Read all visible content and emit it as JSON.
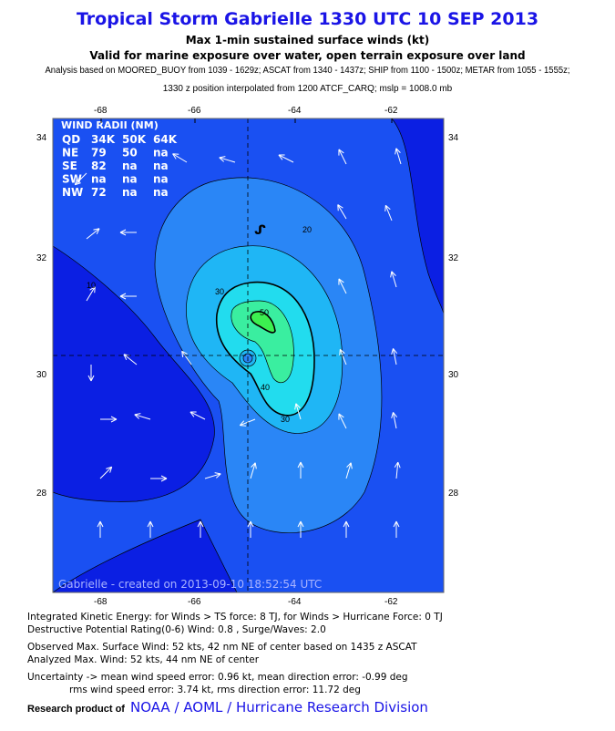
{
  "header": {
    "title": "Tropical Storm Gabrielle 1330 UTC 10 SEP 2013",
    "subtitle1": "Max 1-min sustained surface winds (kt)",
    "subtitle2": "Valid for marine exposure over water, open terrain exposure over land",
    "analysis1": "Analysis based on MOORED_BUOY from 1039 - 1629z; ASCAT from 1340 - 1437z; SHIP from 1100 - 1500z; METAR from 1055 - 1555z;",
    "analysis2": "1330 z position interpolated from 1200 ATCF_CARQ; mslp = 1008.0 mb"
  },
  "map": {
    "lon_ticks": [
      "-68",
      "-66",
      "-64",
      "-62"
    ],
    "lat_ticks": [
      "34",
      "32",
      "30",
      "28"
    ],
    "contour_labels": [
      "10",
      "20",
      "30",
      "40",
      "50"
    ],
    "watermark": "Gabrielle - created on 2013-09-10 18:52:54 UTC",
    "colors": {
      "lt10": "#0b1fe3",
      "b10": "#1a50f2",
      "b20": "#2a86f6",
      "b30": "#1fb6f5",
      "b40": "#22dcee",
      "b50": "#3aeea0",
      "gt50": "#3cf050"
    }
  },
  "wind_radii": {
    "title": "WIND RADII (NM)",
    "header": [
      "QD",
      "34K",
      "50K",
      "64K"
    ],
    "rows": [
      [
        "NE",
        "79",
        "50",
        "na"
      ],
      [
        "SE",
        "82",
        "na",
        "na"
      ],
      [
        "SW",
        "na",
        "na",
        "na"
      ],
      [
        "NW",
        "72",
        "na",
        "na"
      ]
    ]
  },
  "info": {
    "ike": "Integrated Kinetic Energy: for Winds > TS force: 8 TJ, for Winds > Hurricane Force: 0 TJ",
    "dpr": "Destructive Potential Rating(0-6)   Wind: 0.8 , Surge/Waves: 2.0",
    "obs": "Observed Max. Surface Wind: 52 kts, 42 nm NE of center based on 1435 z ASCAT",
    "analyzed": "Analyzed Max. Wind: 52 kts, 44 nm  NE of center",
    "unc1": "Uncertainty -> mean wind speed error: 0.96 kt, mean direction error:  -0.99 deg",
    "unc2": "rms wind speed error: 3.74 kt, rms direction error: 11.72 deg"
  },
  "credit": {
    "prefix": "Research product of",
    "link": "NOAA / AOML / Hurricane Research Division"
  }
}
